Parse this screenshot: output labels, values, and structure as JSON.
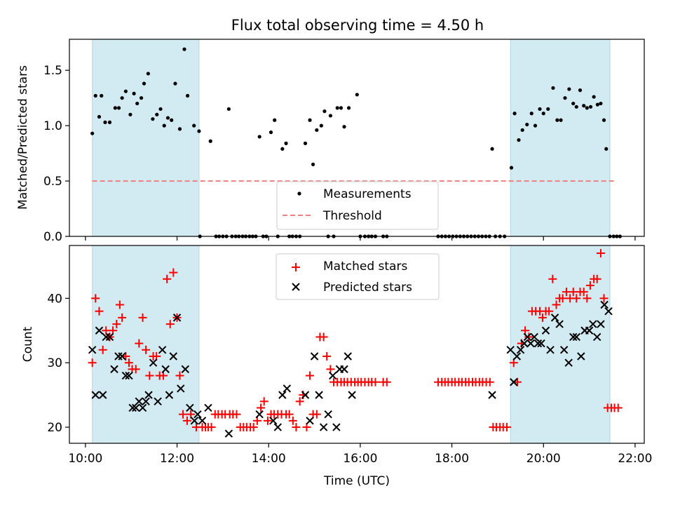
{
  "colors": {
    "shade": "#add8e6",
    "measurement": "#000000",
    "threshold": "#f08080",
    "matched": "#ff0000",
    "predicted": "#000000",
    "axis": "#000000"
  },
  "chart_data": [
    {
      "type": "scatter",
      "title": "Flux total observing time = 4.50 h",
      "xlabel": "",
      "ylabel": "Matched/Predicted stars",
      "xlim": [
        9.65,
        22.2
      ],
      "ylim": [
        0,
        1.78
      ],
      "yticks": [
        0.0,
        0.5,
        1.0,
        1.5
      ],
      "ytick_labels": [
        "0.0",
        "0.5",
        "1.0",
        "1.5"
      ],
      "shaded_intervals_hours": [
        [
          10.15,
          12.48
        ],
        [
          19.28,
          21.45
        ]
      ],
      "threshold": 0.5,
      "threshold_range_hours": [
        10.15,
        21.6
      ],
      "legend": {
        "position": "lower-center",
        "entries": [
          "Measurements",
          "Threshold"
        ]
      },
      "series": [
        {
          "name": "Measurements",
          "x_hours": [
            10.15,
            10.22,
            10.3,
            10.35,
            10.43,
            10.53,
            10.65,
            10.73,
            10.8,
            10.88,
            10.98,
            11.06,
            11.13,
            11.22,
            11.28,
            11.37,
            11.47,
            11.56,
            11.64,
            11.72,
            11.8,
            11.88,
            11.96,
            12.06,
            12.16,
            12.23,
            12.37,
            12.48,
            12.73,
            13.13,
            13.8,
            14.05,
            14.13,
            14.3,
            14.38,
            14.8,
            14.9,
            14.97,
            15.05,
            15.15,
            15.22,
            15.35,
            15.5,
            15.58,
            15.65,
            15.75,
            15.93,
            18.88,
            19.3,
            19.37,
            19.46,
            19.54,
            19.64,
            19.74,
            19.82,
            19.92,
            20.0,
            20.1,
            20.21,
            20.3,
            20.38,
            20.47,
            20.56,
            20.65,
            20.72,
            20.8,
            20.88,
            20.95,
            21.03,
            21.1,
            21.18,
            21.25,
            21.32,
            21.37,
            21.45,
            21.53,
            21.6,
            12.5,
            12.85,
            12.92,
            13.0,
            13.08,
            13.2,
            13.28,
            13.35,
            13.43,
            13.5,
            13.58,
            13.65,
            13.72,
            13.88,
            13.95,
            14.2,
            14.45,
            14.52,
            14.6,
            14.68,
            15.3,
            15.42,
            16.0,
            16.1,
            16.18,
            16.25,
            16.33,
            16.5,
            16.58,
            17.7,
            17.78,
            17.86,
            17.94,
            18.02,
            18.1,
            18.18,
            18.26,
            18.34,
            18.42,
            18.5,
            18.58,
            18.66,
            18.74,
            18.82,
            18.95,
            19.05,
            19.15,
            21.67
          ],
          "y": [
            0.93,
            1.27,
            1.08,
            1.27,
            1.03,
            1.03,
            1.16,
            1.16,
            1.25,
            1.31,
            1.1,
            1.29,
            1.2,
            1.25,
            1.38,
            1.47,
            1.06,
            1.1,
            1.15,
            1.0,
            1.07,
            1.05,
            1.38,
            0.97,
            1.69,
            1.27,
            1.0,
            0.95,
            0.86,
            1.15,
            0.9,
            0.94,
            1.05,
            0.79,
            0.84,
            0.84,
            1.05,
            0.65,
            0.96,
            1.0,
            1.13,
            1.09,
            1.16,
            1.16,
            0.99,
            1.16,
            1.28,
            0.79,
            0.62,
            1.11,
            0.87,
            0.96,
            1.01,
            1.11,
            1.0,
            1.15,
            1.11,
            1.15,
            1.34,
            1.05,
            1.05,
            1.25,
            1.33,
            1.2,
            1.17,
            1.32,
            1.18,
            1.16,
            1.17,
            1.26,
            1.19,
            1.2,
            1.05,
            0.79,
            0.0,
            0.0,
            0.0,
            0.0,
            0.0,
            0.0,
            0.0,
            0.0,
            0.0,
            0.0,
            0.0,
            0.0,
            0.0,
            0.0,
            0.0,
            0.0,
            0.0,
            0.0,
            0.0,
            0.0,
            0.0,
            0.0,
            0.0,
            0.0,
            0.0,
            0.0,
            0.0,
            0.0,
            0.0,
            0.0,
            0.0,
            0.0,
            0.0,
            0.0,
            0.0,
            0.0,
            0.0,
            0.0,
            0.0,
            0.0,
            0.0,
            0.0,
            0.0,
            0.0,
            0.0,
            0.0,
            0.0,
            0.0,
            0.0,
            0.0,
            0.0
          ]
        }
      ]
    },
    {
      "type": "scatter",
      "title": "",
      "xlabel": "Time (UTC)",
      "ylabel": "Count",
      "xlim": [
        9.65,
        22.2
      ],
      "ylim": [
        17.5,
        48.2
      ],
      "yticks": [
        20,
        30,
        40
      ],
      "ytick_labels": [
        "20",
        "30",
        "40"
      ],
      "xticks_hours": [
        10,
        12,
        14,
        16,
        18,
        20,
        22
      ],
      "xtick_labels": [
        "10:00",
        "12:00",
        "14:00",
        "16:00",
        "18:00",
        "20:00",
        "22:00"
      ],
      "shaded_intervals_hours": [
        [
          10.15,
          12.48
        ],
        [
          19.28,
          21.45
        ]
      ],
      "legend": {
        "position": "upper-center",
        "entries": [
          "Matched stars",
          "Predicted stars"
        ]
      },
      "series": [
        {
          "name": "Matched stars",
          "x_hours": [
            10.15,
            10.22,
            10.3,
            10.38,
            10.45,
            10.53,
            10.6,
            10.68,
            10.75,
            10.8,
            10.88,
            10.95,
            11.02,
            11.1,
            11.17,
            11.25,
            11.32,
            11.4,
            11.48,
            11.55,
            11.62,
            11.7,
            11.78,
            11.85,
            11.92,
            12.0,
            12.06,
            12.13,
            12.22,
            12.3,
            12.42,
            12.55,
            12.62,
            12.68,
            12.75,
            12.83,
            12.9,
            12.98,
            13.05,
            13.15,
            13.22,
            13.3,
            13.38,
            13.45,
            13.52,
            13.6,
            13.67,
            13.75,
            13.83,
            13.9,
            13.98,
            14.05,
            14.12,
            14.2,
            14.28,
            14.38,
            14.45,
            14.53,
            14.6,
            14.68,
            14.75,
            14.83,
            14.9,
            14.97,
            15.05,
            15.12,
            15.2,
            15.27,
            15.35,
            15.42,
            15.5,
            15.58,
            15.65,
            15.72,
            15.8,
            15.88,
            15.95,
            16.02,
            16.1,
            16.18,
            16.25,
            16.33,
            16.5,
            16.58,
            17.7,
            17.78,
            17.85,
            17.92,
            18.0,
            18.07,
            18.15,
            18.22,
            18.3,
            18.37,
            18.45,
            18.52,
            18.6,
            18.67,
            18.75,
            18.83,
            18.9,
            18.97,
            19.05,
            19.12,
            19.2,
            19.35,
            19.43,
            19.52,
            19.6,
            19.68,
            19.75,
            19.83,
            19.92,
            19.98,
            20.05,
            20.12,
            20.2,
            20.28,
            20.35,
            20.42,
            20.5,
            20.58,
            20.65,
            20.72,
            20.8,
            20.88,
            20.95,
            21.02,
            21.1,
            21.17,
            21.25,
            21.32,
            21.4,
            21.48,
            21.55,
            21.63
          ],
          "y": [
            30,
            40,
            38,
            32,
            35,
            34,
            35,
            36,
            39,
            37,
            31,
            30,
            29,
            29,
            33,
            37,
            32,
            28,
            31,
            31,
            28,
            28,
            43,
            36,
            44,
            37,
            28,
            22,
            21,
            22,
            20,
            20,
            20,
            20,
            20,
            22,
            22,
            22,
            22,
            22,
            22,
            22,
            20,
            20,
            20,
            20,
            20,
            21,
            23,
            24,
            21,
            22,
            22,
            22,
            22,
            22,
            22,
            21,
            20,
            24,
            25,
            20,
            28,
            22,
            22,
            34,
            34,
            31,
            29,
            27,
            27,
            27,
            27,
            27,
            27,
            27,
            27,
            27,
            27,
            27,
            27,
            27,
            27,
            27,
            27,
            27,
            27,
            27,
            27,
            27,
            27,
            27,
            27,
            27,
            27,
            27,
            27,
            27,
            27,
            27,
            20,
            20,
            20,
            20,
            20,
            30,
            27,
            33,
            35,
            34,
            38,
            38,
            38,
            37,
            38,
            38,
            43,
            39,
            40,
            40,
            41,
            40,
            41,
            40,
            41,
            41,
            40,
            42,
            43,
            43,
            47,
            40,
            23,
            23,
            23,
            23
          ]
        },
        {
          "name": "Predicted stars",
          "x_hours": [
            10.15,
            10.22,
            10.3,
            10.38,
            10.45,
            10.53,
            10.63,
            10.72,
            10.8,
            10.88,
            10.95,
            11.03,
            11.1,
            11.17,
            11.25,
            11.32,
            11.38,
            11.48,
            11.58,
            11.68,
            11.75,
            11.83,
            11.92,
            12.0,
            12.08,
            12.18,
            12.28,
            12.38,
            12.45,
            12.55,
            12.68,
            13.13,
            13.8,
            14.1,
            14.2,
            14.3,
            14.4,
            14.8,
            14.9,
            15.0,
            15.1,
            15.2,
            15.3,
            15.4,
            15.48,
            15.55,
            15.65,
            15.73,
            15.82,
            18.88,
            19.28,
            19.35,
            19.42,
            19.5,
            19.58,
            19.65,
            19.72,
            19.8,
            19.88,
            19.95,
            20.05,
            20.15,
            20.25,
            20.35,
            20.45,
            20.55,
            20.65,
            20.72,
            20.82,
            20.9,
            21.0,
            21.08,
            21.17,
            21.25,
            21.33,
            21.42
          ],
          "y": [
            32,
            25,
            35,
            25,
            34,
            34,
            29,
            31,
            31,
            28,
            28,
            23,
            23,
            24,
            23,
            24,
            25,
            30,
            24,
            32,
            29,
            25,
            31,
            37,
            26,
            29,
            23,
            21,
            22,
            21,
            23,
            19,
            22,
            21,
            20,
            25,
            26,
            25,
            21,
            31,
            25,
            20,
            22,
            28,
            20,
            29,
            29,
            31,
            25,
            25,
            32,
            27,
            31,
            32,
            33,
            34,
            33,
            34,
            33,
            33,
            35,
            32,
            37,
            36,
            32,
            30,
            34,
            34,
            31,
            35,
            35,
            36,
            34,
            36,
            39,
            38
          ]
        }
      ]
    }
  ]
}
